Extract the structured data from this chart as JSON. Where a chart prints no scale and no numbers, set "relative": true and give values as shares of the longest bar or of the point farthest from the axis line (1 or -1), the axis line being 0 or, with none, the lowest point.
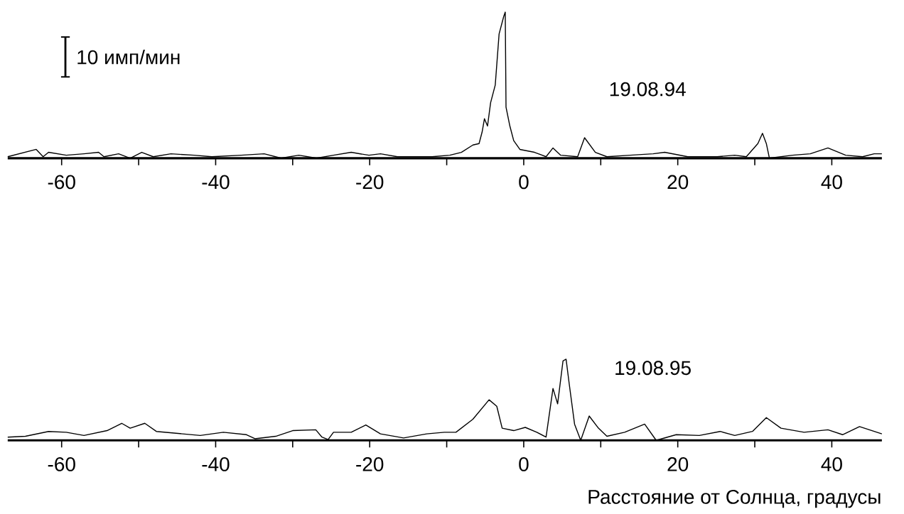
{
  "chart_data": [
    {
      "type": "line",
      "relative": true,
      "annotations": [
        "10 имп/мин",
        "19.08.94"
      ],
      "xlim": [
        -67,
        46.5
      ],
      "xticks": [
        -60,
        {
          "value": -50,
          "label": null
        },
        -40,
        {
          "value": -30,
          "label": null
        },
        -20,
        {
          "value": -10,
          "label": null
        },
        0,
        {
          "value": 10,
          "label": null
        },
        20,
        {
          "value": 30,
          "label": null
        },
        40
      ],
      "x": [
        -67.0,
        -63.3,
        -62.4,
        -61.7,
        -59.4,
        -57.1,
        -55.2,
        -54.5,
        -52.6,
        -51.1,
        -49.6,
        -48.1,
        -45.8,
        -42.8,
        -40.5,
        -36.7,
        -33.7,
        -31.5,
        -29.2,
        -26.9,
        -24.7,
        -22.4,
        -20.1,
        -18.6,
        -16.4,
        -11.9,
        -9.6,
        -8.1,
        -6.6,
        -5.8,
        -5.4,
        -5.1,
        -4.7,
        -4.3,
        -3.7,
        -3.2,
        -2.6,
        -2.4,
        -2.3,
        -1.8,
        -1.3,
        -0.5,
        1.4,
        2.9,
        3.8,
        4.8,
        7.0,
        7.9,
        9.3,
        10.8,
        13.8,
        16.8,
        18.3,
        21.3,
        25.1,
        27.4,
        28.9,
        30.4,
        31.0,
        31.5,
        31.9,
        34.9,
        37.2,
        39.5,
        41.8,
        44.0,
        45.5,
        46.5
      ],
      "values": [
        0.01,
        0.06,
        0.01,
        0.04,
        0.02,
        0.03,
        0.04,
        0.01,
        0.03,
        0.0,
        0.04,
        0.01,
        0.03,
        0.02,
        0.01,
        0.02,
        0.03,
        0.0,
        0.02,
        0.0,
        0.02,
        0.04,
        0.02,
        0.03,
        0.01,
        0.01,
        0.02,
        0.04,
        0.09,
        0.1,
        0.18,
        0.27,
        0.22,
        0.38,
        0.5,
        0.85,
        0.97,
        1.0,
        0.35,
        0.22,
        0.12,
        0.06,
        0.04,
        0.01,
        0.07,
        0.02,
        0.01,
        0.14,
        0.04,
        0.01,
        0.02,
        0.03,
        0.04,
        0.01,
        0.01,
        0.02,
        0.01,
        0.1,
        0.17,
        0.1,
        0.0,
        0.02,
        0.03,
        0.07,
        0.02,
        0.01,
        0.03,
        0.03
      ]
    },
    {
      "type": "line",
      "relative": true,
      "annotations": [
        "19.08.95"
      ],
      "xlabel": "Расстояние от Солнца, градусы",
      "xlim": [
        -67,
        46.5
      ],
      "xticks": [
        -60,
        {
          "value": -50,
          "label": null
        },
        -40,
        {
          "value": -30,
          "label": null
        },
        -20,
        {
          "value": -10,
          "label": null
        },
        0,
        {
          "value": 10,
          "label": null
        },
        20,
        {
          "value": 30,
          "label": null
        },
        40
      ],
      "x": [
        -67.0,
        -64.7,
        -61.7,
        -59.4,
        -57.1,
        -54.1,
        -52.2,
        -51.1,
        -49.2,
        -47.7,
        -44.3,
        -42.0,
        -39.0,
        -36.0,
        -34.9,
        -32.2,
        -30.0,
        -27.0,
        -26.2,
        -25.4,
        -24.7,
        -22.4,
        -20.5,
        -18.6,
        -15.6,
        -12.6,
        -10.3,
        -8.8,
        -6.6,
        -4.5,
        -3.5,
        -2.8,
        -1.3,
        0.2,
        1.7,
        2.9,
        3.8,
        4.4,
        5.1,
        5.5,
        5.9,
        6.6,
        7.4,
        8.5,
        9.7,
        10.8,
        13.1,
        15.7,
        17.2,
        19.8,
        22.8,
        25.5,
        27.4,
        29.7,
        31.5,
        33.4,
        36.4,
        39.5,
        41.4,
        43.6,
        46.5
      ],
      "values": [
        0.04,
        0.05,
        0.11,
        0.1,
        0.06,
        0.12,
        0.21,
        0.15,
        0.21,
        0.11,
        0.08,
        0.06,
        0.1,
        0.07,
        0.02,
        0.05,
        0.12,
        0.13,
        0.04,
        0.01,
        0.1,
        0.1,
        0.19,
        0.08,
        0.03,
        0.08,
        0.1,
        0.1,
        0.26,
        0.5,
        0.42,
        0.15,
        0.12,
        0.16,
        0.1,
        0.04,
        0.64,
        0.45,
        0.98,
        1.0,
        0.7,
        0.2,
        0.0,
        0.3,
        0.15,
        0.05,
        0.1,
        0.2,
        0.0,
        0.07,
        0.06,
        0.11,
        0.06,
        0.11,
        0.28,
        0.15,
        0.1,
        0.13,
        0.07,
        0.17,
        0.08
      ]
    }
  ]
}
